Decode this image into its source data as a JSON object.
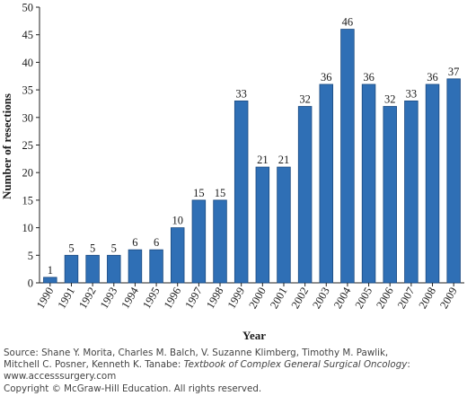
{
  "chart_data": {
    "type": "bar",
    "categories": [
      "1990",
      "1991",
      "1992",
      "1993",
      "1994",
      "1995",
      "1996",
      "1997",
      "1998",
      "1999",
      "2000",
      "2001",
      "2002",
      "2003",
      "2004",
      "2005",
      "2006",
      "2007",
      "2008",
      "2009"
    ],
    "values": [
      1,
      5,
      5,
      5,
      6,
      6,
      10,
      15,
      15,
      33,
      21,
      21,
      32,
      36,
      46,
      36,
      32,
      33,
      36,
      37
    ],
    "data_labels": [
      "1",
      "5",
      "5",
      "5",
      "6",
      "6",
      "10",
      "15",
      "15",
      "33",
      "21",
      "21",
      "32",
      "36",
      "46",
      "36",
      "32",
      "33",
      "36",
      "37"
    ],
    "title": "",
    "xlabel": "Year",
    "ylabel": "Number of resections",
    "ylim": [
      0,
      50
    ],
    "yticks": [
      "0",
      "5",
      "10",
      "15",
      "20",
      "25",
      "30",
      "35",
      "40",
      "45",
      "50"
    ],
    "grid": false,
    "legend": "none",
    "bar_color": "#2f6fb5"
  },
  "credit": {
    "source_prefix": "Source: Shane Y. Morita, Charles M. Balch, V. Suzanne Klimberg, Timothy M. Pawlik,",
    "source_line2_prefix": "Mitchell C. Posner, Kenneth K. Tanabe: ",
    "book_title": "Textbook of Complex General Surgical Oncology",
    "book_suffix": ":",
    "url": "www.accesssurgery.com",
    "copyright": "Copyright © McGraw-Hill Education. All rights reserved."
  }
}
